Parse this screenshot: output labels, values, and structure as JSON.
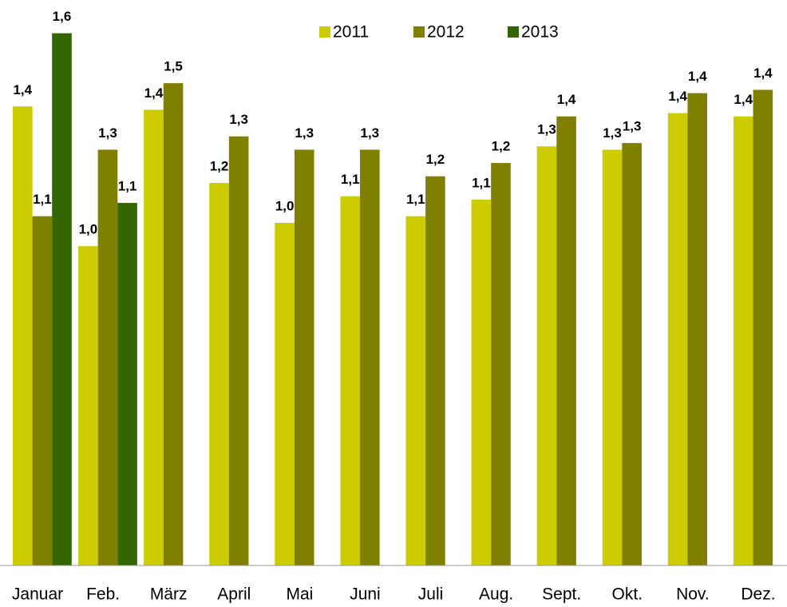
{
  "chart_data": {
    "type": "bar",
    "categories": [
      "Januar",
      "Feb.",
      "März",
      "April",
      "Mai",
      "Juni",
      "Juli",
      "Aug.",
      "Sept.",
      "Okt.",
      "Nov.",
      "Dez."
    ],
    "series": [
      {
        "name": "2011",
        "color": "#cccc00",
        "values": [
          1.38,
          0.96,
          1.37,
          1.15,
          1.03,
          1.11,
          1.05,
          1.1,
          1.26,
          1.25,
          1.36,
          1.35
        ],
        "value_labels": [
          "1,4",
          "1,0",
          "1,4",
          "1,2",
          "1,0",
          "1,1",
          "1,1",
          "1,1",
          "1,3",
          "1,3",
          "1,4",
          "1,4"
        ]
      },
      {
        "name": "2012",
        "color": "#808000",
        "values": [
          1.05,
          1.25,
          1.45,
          1.29,
          1.25,
          1.25,
          1.17,
          1.21,
          1.35,
          1.27,
          1.42,
          1.43
        ],
        "value_labels": [
          "1,1",
          "1,3",
          "1,5",
          "1,3",
          "1,3",
          "1,3",
          "1,2",
          "1,2",
          "1,4",
          "1,3",
          "1,4",
          "1,4"
        ]
      },
      {
        "name": "2013",
        "color": "#336600",
        "values": [
          1.6,
          1.09,
          null,
          null,
          null,
          null,
          null,
          null,
          null,
          null,
          null,
          null
        ],
        "value_labels": [
          "1,6",
          "1,1",
          null,
          null,
          null,
          null,
          null,
          null,
          null,
          null,
          null,
          null
        ]
      }
    ],
    "ylim": [
      0,
      1.7
    ],
    "legend": "top"
  }
}
